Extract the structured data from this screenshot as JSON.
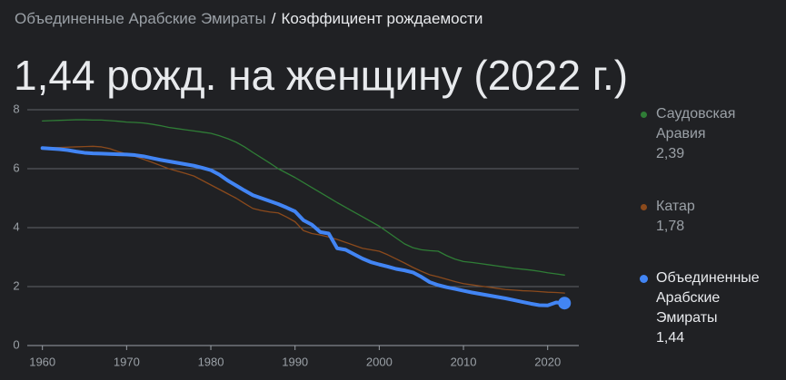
{
  "breadcrumb": [
    "Объединенные Арабские Эмираты",
    "Коэффициент рождаемости"
  ],
  "separator": "/",
  "headline": "1,44 рожд. на женщину (2022 г.)",
  "chart_data": {
    "type": "line",
    "x": [
      1960,
      1961,
      1962,
      1963,
      1964,
      1965,
      1966,
      1967,
      1968,
      1969,
      1970,
      1971,
      1972,
      1973,
      1974,
      1975,
      1976,
      1977,
      1978,
      1979,
      1980,
      1981,
      1982,
      1983,
      1984,
      1985,
      1986,
      1987,
      1988,
      1989,
      1990,
      1991,
      1992,
      1993,
      1994,
      1995,
      1996,
      1997,
      1998,
      1999,
      2000,
      2001,
      2002,
      2003,
      2004,
      2005,
      2006,
      2007,
      2008,
      2009,
      2010,
      2011,
      2012,
      2013,
      2014,
      2015,
      2016,
      2017,
      2018,
      2019,
      2020,
      2021,
      2022
    ],
    "xlim": [
      1958.2,
      2023.7
    ],
    "xticks": [
      1960,
      1970,
      1980,
      1990,
      2000,
      2010,
      2020
    ],
    "ylim": [
      0,
      8
    ],
    "yticks": [
      0,
      2,
      4,
      6,
      8
    ],
    "grid": true,
    "series": [
      {
        "name": "Саудовская Аравия",
        "color": "#2f7d36",
        "selected": false,
        "latest_label": "2,39",
        "values": [
          7.62,
          7.63,
          7.64,
          7.65,
          7.66,
          7.66,
          7.65,
          7.65,
          7.63,
          7.61,
          7.58,
          7.57,
          7.55,
          7.51,
          7.46,
          7.4,
          7.36,
          7.32,
          7.28,
          7.24,
          7.2,
          7.12,
          7.02,
          6.9,
          6.74,
          6.55,
          6.37,
          6.19,
          6.0,
          5.85,
          5.7,
          5.53,
          5.36,
          5.19,
          5.02,
          4.85,
          4.69,
          4.53,
          4.37,
          4.21,
          4.05,
          3.85,
          3.65,
          3.45,
          3.32,
          3.25,
          3.22,
          3.2,
          3.05,
          2.93,
          2.85,
          2.82,
          2.78,
          2.74,
          2.7,
          2.66,
          2.62,
          2.59,
          2.56,
          2.52,
          2.47,
          2.43,
          2.39
        ]
      },
      {
        "name": "Катар",
        "color": "#8b4a1c",
        "selected": false,
        "latest_label": "1,78",
        "values": [
          6.7,
          6.71,
          6.72,
          6.73,
          6.74,
          6.75,
          6.76,
          6.74,
          6.68,
          6.58,
          6.5,
          6.42,
          6.32,
          6.22,
          6.11,
          6.0,
          5.92,
          5.84,
          5.75,
          5.6,
          5.45,
          5.3,
          5.15,
          5.0,
          4.82,
          4.65,
          4.58,
          4.53,
          4.5,
          4.36,
          4.2,
          3.9,
          3.8,
          3.75,
          3.68,
          3.6,
          3.5,
          3.4,
          3.3,
          3.25,
          3.2,
          3.08,
          2.94,
          2.8,
          2.65,
          2.52,
          2.4,
          2.33,
          2.25,
          2.17,
          2.1,
          2.06,
          2.02,
          1.98,
          1.94,
          1.9,
          1.88,
          1.86,
          1.85,
          1.83,
          1.81,
          1.8,
          1.78
        ]
      },
      {
        "name": "Объединенные Арабские Эмираты",
        "color": "#4285f4",
        "selected": true,
        "latest_label": "1,44",
        "values": [
          6.7,
          6.68,
          6.66,
          6.63,
          6.58,
          6.54,
          6.52,
          6.51,
          6.5,
          6.49,
          6.48,
          6.46,
          6.42,
          6.36,
          6.3,
          6.25,
          6.2,
          6.15,
          6.1,
          6.03,
          5.95,
          5.8,
          5.6,
          5.43,
          5.26,
          5.1,
          5.0,
          4.9,
          4.8,
          4.68,
          4.55,
          4.25,
          4.1,
          3.85,
          3.8,
          3.3,
          3.25,
          3.1,
          2.95,
          2.83,
          2.75,
          2.68,
          2.6,
          2.55,
          2.48,
          2.33,
          2.15,
          2.05,
          1.98,
          1.92,
          1.86,
          1.8,
          1.75,
          1.7,
          1.65,
          1.6,
          1.54,
          1.48,
          1.42,
          1.37,
          1.36,
          1.46,
          1.44
        ]
      }
    ]
  }
}
